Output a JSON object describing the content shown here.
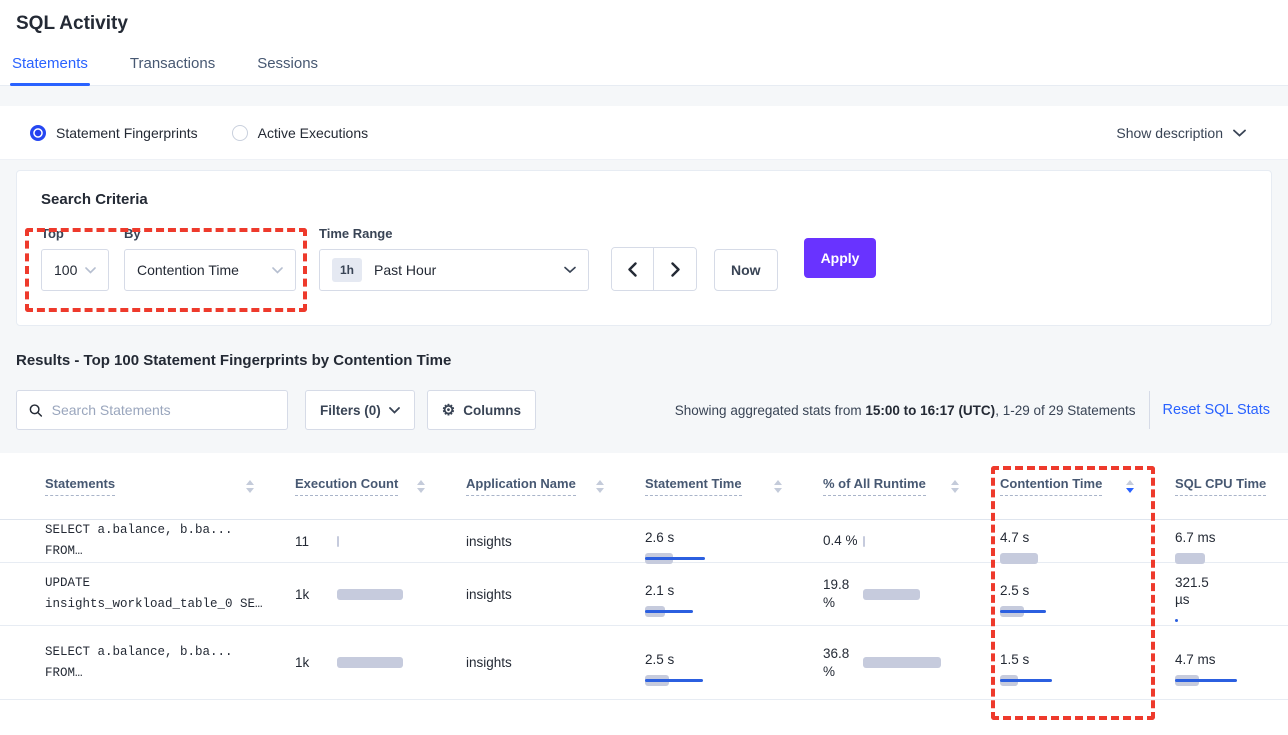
{
  "page": {
    "title": "SQL Activity"
  },
  "tabs": [
    {
      "label": "Statements",
      "active": true
    },
    {
      "label": "Transactions",
      "active": false
    },
    {
      "label": "Sessions",
      "active": false
    }
  ],
  "view_toggle": {
    "options": [
      {
        "label": "Statement Fingerprints",
        "selected": true
      },
      {
        "label": "Active Executions",
        "selected": false
      }
    ],
    "show_description_label": "Show description"
  },
  "search_criteria": {
    "title": "Search Criteria",
    "top": {
      "label": "Top",
      "value": "100"
    },
    "by": {
      "label": "By",
      "value": "Contention Time"
    },
    "time_range": {
      "label": "Time Range",
      "badge": "1h",
      "value": "Past Hour"
    },
    "now_label": "Now",
    "apply_label": "Apply"
  },
  "results": {
    "heading": "Results - Top 100 Statement Fingerprints by Contention Time",
    "search_placeholder": "Search Statements",
    "filters_label": "Filters (0)",
    "columns_label": "Columns",
    "stats_prefix": "Showing aggregated stats from ",
    "stats_bold": "15:00 to 16:17 (UTC)",
    "stats_suffix": ", 1-29 of 29 Statements",
    "reset_label": "Reset SQL Stats"
  },
  "table": {
    "columns": [
      {
        "key": "statement",
        "label": "Statements",
        "sortable": true,
        "sort": null
      },
      {
        "key": "execution_count",
        "label": "Execution Count",
        "sortable": true,
        "sort": null
      },
      {
        "key": "application",
        "label": "Application Name",
        "sortable": true,
        "sort": null
      },
      {
        "key": "statement_time",
        "label": "Statement Time",
        "sortable": true,
        "sort": null
      },
      {
        "key": "runtime_pct",
        "label": "% of All Runtime",
        "sortable": true,
        "sort": null
      },
      {
        "key": "contention_time",
        "label": "Contention Time",
        "sortable": true,
        "sort": "desc"
      },
      {
        "key": "cpu_time",
        "label": "SQL CPU Time",
        "sortable": false,
        "sort": null
      }
    ],
    "rows": [
      {
        "statement": [
          "SELECT a.balance, b.ba...",
          "FROM…"
        ],
        "cells": {
          "execution_count": {
            "value": "11",
            "layout": "h",
            "gray": 2,
            "blue": 0
          },
          "application": {
            "value": "insights",
            "layout": "text"
          },
          "statement_time": {
            "value": "2.6 s",
            "layout": "v",
            "gray": 28,
            "blue": 60
          },
          "runtime_pct": {
            "value": "0.4 %",
            "layout": "h",
            "gray": 2,
            "blue": 0
          },
          "contention_time": {
            "value": "4.7 s",
            "layout": "v",
            "gray": 38,
            "blue": 0
          },
          "cpu_time": {
            "value": "6.7 ms",
            "layout": "v",
            "gray": 30,
            "blue": 0
          }
        }
      },
      {
        "statement": [
          "UPDATE",
          "insights_workload_table_0 SE…"
        ],
        "cells": {
          "execution_count": {
            "value": "1k",
            "layout": "h",
            "gray": 66,
            "blue": 0
          },
          "application": {
            "value": "insights",
            "layout": "text"
          },
          "statement_time": {
            "value": "2.1 s",
            "layout": "v",
            "gray": 20,
            "blue": 48
          },
          "runtime_pct": {
            "value": "19.8 %",
            "layout": "h",
            "gray": 57,
            "blue": 0
          },
          "contention_time": {
            "value": "2.5 s",
            "layout": "v",
            "gray": 24,
            "blue": 46
          },
          "cpu_time": {
            "value": "321.5 µs",
            "layout": "v",
            "gray": 0,
            "blue": 3
          }
        }
      },
      {
        "statement": [
          "SELECT a.balance, b.ba...",
          "FROM…"
        ],
        "cells": {
          "execution_count": {
            "value": "1k",
            "layout": "h",
            "gray": 66,
            "blue": 0
          },
          "application": {
            "value": "insights",
            "layout": "text"
          },
          "statement_time": {
            "value": "2.5 s",
            "layout": "v",
            "gray": 24,
            "blue": 58
          },
          "runtime_pct": {
            "value": "36.8 %",
            "layout": "h",
            "gray": 78,
            "blue": 0
          },
          "contention_time": {
            "value": "1.5 s",
            "layout": "v",
            "gray": 18,
            "blue": 52
          },
          "cpu_time": {
            "value": "4.7 ms",
            "layout": "v",
            "gray": 24,
            "blue": 62
          }
        }
      }
    ]
  },
  "colors": {
    "accent_blue": "#2962ff",
    "apply_purple": "#6933ff",
    "bar_gray": "#c6cbdd",
    "bar_blue": "#2b5fe0",
    "highlight_red": "#ee3a2c"
  }
}
